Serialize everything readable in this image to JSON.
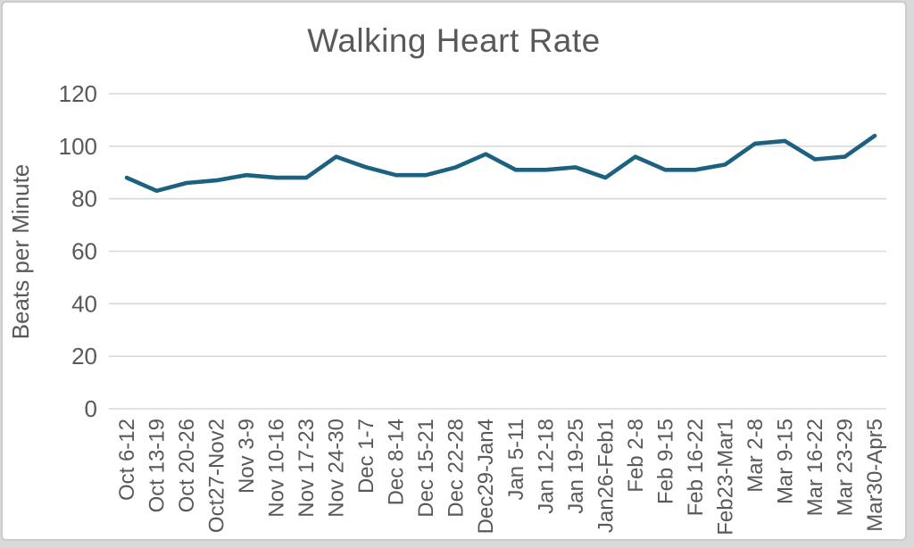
{
  "chart_data": {
    "type": "line",
    "title": "Walking Heart Rate",
    "xlabel": "",
    "ylabel": "Beats per Minute",
    "series_name": "Walking Heart Rate",
    "categories": [
      "Oct 6-12",
      "Oct 13-19",
      "Oct 20-26",
      "Oct27-Nov2",
      "Nov 3-9",
      "Nov 10-16",
      "Nov 17-23",
      "Nov 24-30",
      "Dec 1-7",
      "Dec 8-14",
      "Dec 15-21",
      "Dec 22-28",
      "Dec29-Jan4",
      "Jan 5-11",
      "Jan 12-18",
      "Jan 19-25",
      "Jan26-Feb1",
      "Feb 2-8",
      "Feb 9-15",
      "Feb 16-22",
      "Feb23-Mar1",
      "Mar 2-8",
      "Mar 9-15",
      "Mar 16-22",
      "Mar 23-29",
      "Mar30-Apr5"
    ],
    "values": [
      88,
      83,
      86,
      87,
      89,
      88,
      88,
      96,
      92,
      89,
      89,
      92,
      97,
      91,
      91,
      92,
      88,
      96,
      91,
      91,
      93,
      101,
      102,
      95,
      96,
      104
    ],
    "y_ticks": [
      0,
      20,
      40,
      60,
      80,
      100,
      120
    ],
    "ylim": [
      0,
      120
    ],
    "grid": "horizontal",
    "legend": "none",
    "colors": {
      "line": "#1c6180",
      "grid": "#d9d9d9",
      "text": "#595959",
      "title": "#595959",
      "background": "#ffffff",
      "border": "#c9cdd0"
    }
  }
}
